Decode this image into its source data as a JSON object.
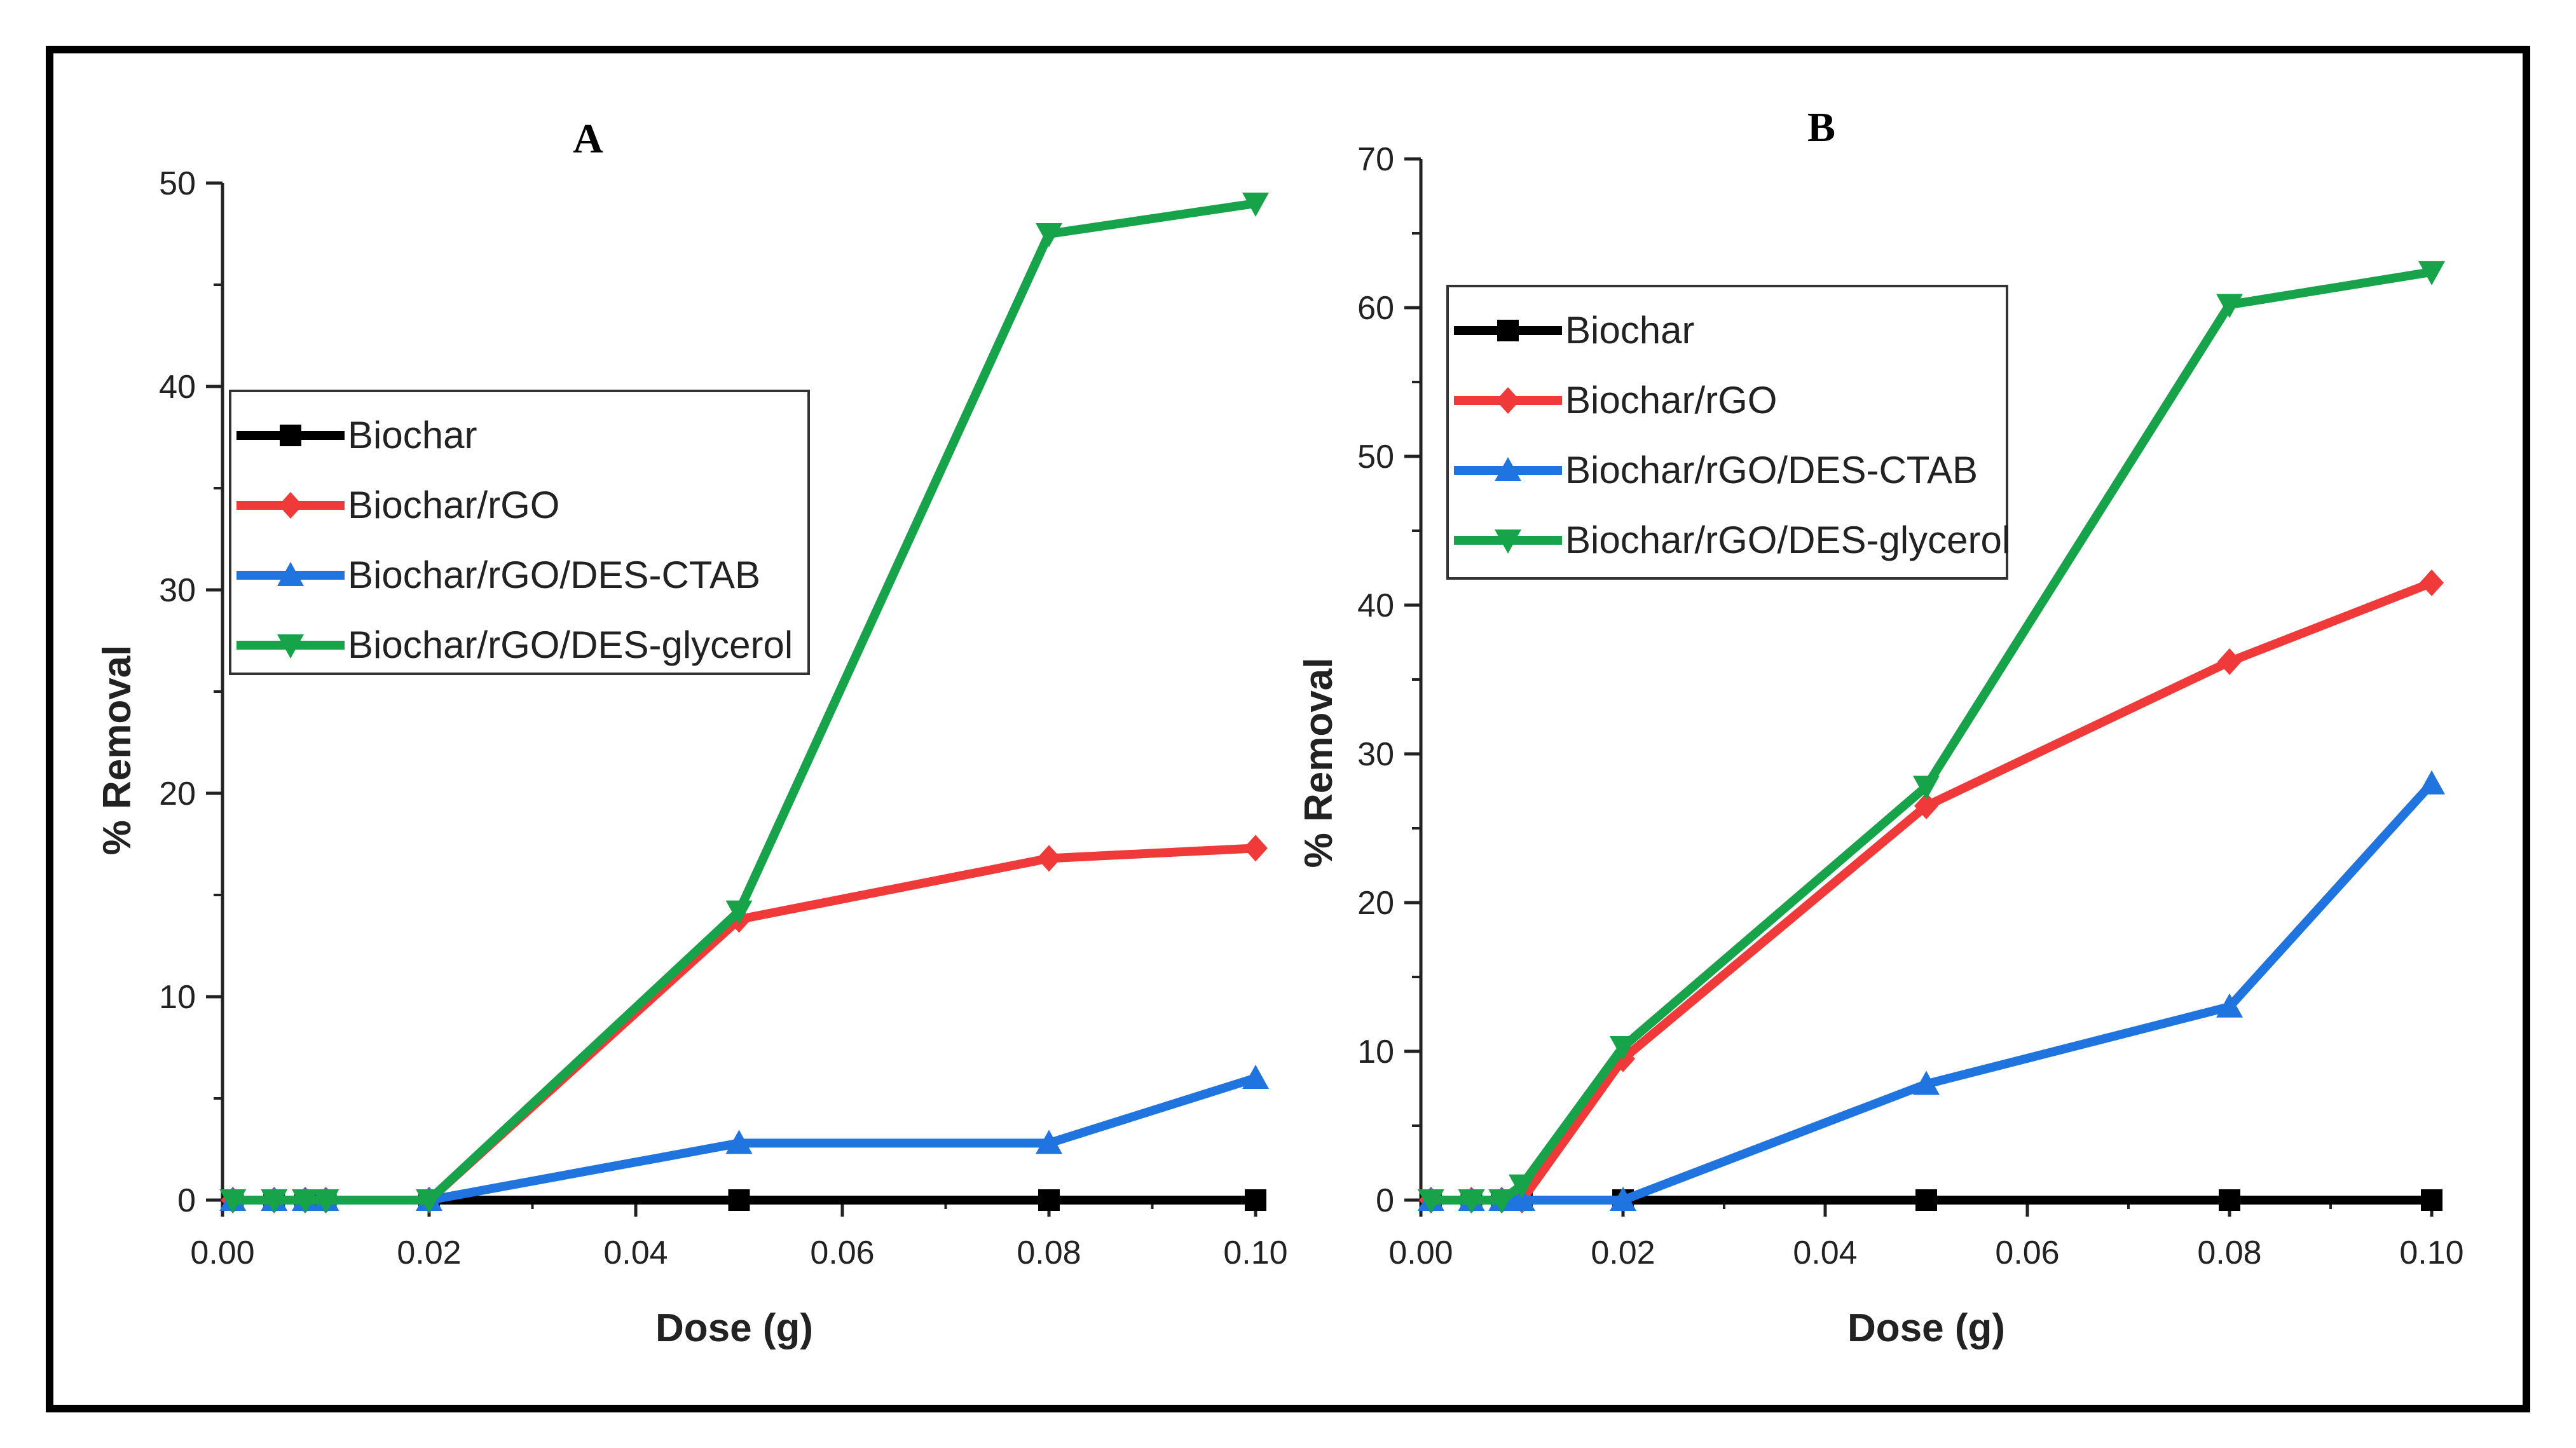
{
  "colors": {
    "Biochar": "#000000",
    "Biochar/rGO": "#f03a3a",
    "Biochar/rGO/DES-CTAB": "#1f74e0",
    "Biochar/rGO/DES-glycerol": "#16a34a"
  },
  "chart_data": [
    {
      "type": "line",
      "panel_label": "A",
      "xlabel": "Dose (g)",
      "ylabel": "% Removal",
      "xlim": [
        0,
        0.1
      ],
      "ylim": [
        0,
        50
      ],
      "xticks": [
        "0.00",
        "0.02",
        "0.04",
        "0.06",
        "0.08",
        "0.10"
      ],
      "yticks": [
        "0",
        "10",
        "20",
        "30",
        "40",
        "50"
      ],
      "legend_position": "upper-left",
      "x": [
        0.001,
        0.005,
        0.008,
        0.01,
        0.02,
        0.05,
        0.08,
        0.1
      ],
      "series": [
        {
          "name": "Biochar",
          "marker": "square",
          "values": [
            0,
            0,
            0,
            0,
            0,
            0,
            0,
            0
          ]
        },
        {
          "name": "Biochar/rGO",
          "marker": "diamond",
          "values": [
            0,
            0,
            0,
            0,
            0,
            13.8,
            16.8,
            17.3
          ]
        },
        {
          "name": "Biochar/rGO/DES-CTAB",
          "marker": "triangle-up",
          "values": [
            0,
            0,
            0,
            0,
            0,
            2.8,
            2.8,
            6.0
          ]
        },
        {
          "name": "Biochar/rGO/DES-glycerol",
          "marker": "triangle-down",
          "values": [
            0,
            0,
            0,
            0,
            0,
            14.2,
            47.5,
            49.0
          ]
        }
      ]
    },
    {
      "type": "line",
      "panel_label": "B",
      "xlabel": "Dose (g)",
      "ylabel": "% Removal",
      "xlim": [
        0,
        0.1
      ],
      "ylim": [
        0,
        70
      ],
      "xticks": [
        "0.00",
        "0.02",
        "0.04",
        "0.06",
        "0.08",
        "0.10"
      ],
      "yticks": [
        "0",
        "10",
        "20",
        "30",
        "40",
        "50",
        "60",
        "70"
      ],
      "legend_position": "upper-left",
      "x": [
        0.001,
        0.005,
        0.008,
        0.01,
        0.02,
        0.05,
        0.08,
        0.1
      ],
      "series": [
        {
          "name": "Biochar",
          "marker": "square",
          "values": [
            0,
            0,
            0,
            0,
            0,
            0,
            0,
            0
          ]
        },
        {
          "name": "Biochar/rGO",
          "marker": "diamond",
          "values": [
            0,
            0,
            0,
            0,
            9.5,
            26.5,
            36.2,
            41.5
          ]
        },
        {
          "name": "Biochar/rGO/DES-CTAB",
          "marker": "triangle-up",
          "values": [
            0,
            0,
            0,
            0,
            0,
            7.8,
            13.0,
            28.0
          ]
        },
        {
          "name": "Biochar/rGO/DES-glycerol",
          "marker": "triangle-down",
          "values": [
            0,
            0,
            0,
            1.0,
            10.3,
            27.8,
            60.2,
            62.4
          ]
        }
      ]
    }
  ]
}
